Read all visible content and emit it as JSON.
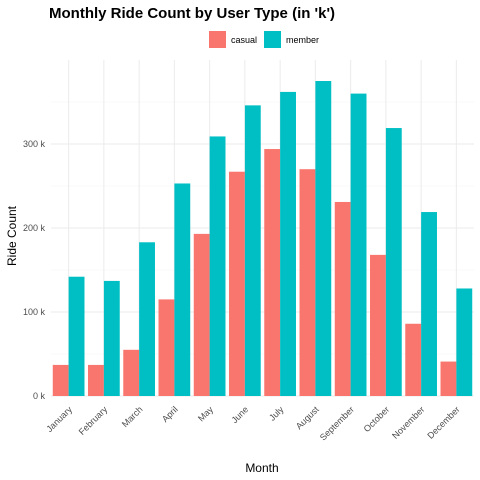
{
  "chart_data": {
    "type": "bar",
    "title": "Monthly Ride Count by User Type (in 'k')",
    "xlabel": "Month",
    "ylabel": "Ride Count",
    "categories": [
      "January",
      "February",
      "March",
      "April",
      "May",
      "June",
      "July",
      "August",
      "September",
      "October",
      "November",
      "December"
    ],
    "series": [
      {
        "name": "casual",
        "color": "#F8766D",
        "values": [
          37,
          37,
          55,
          115,
          193,
          267,
          294,
          270,
          231,
          168,
          86,
          41
        ]
      },
      {
        "name": "member",
        "color": "#00BFC4",
        "values": [
          142,
          137,
          183,
          253,
          309,
          346,
          362,
          375,
          360,
          319,
          219,
          128
        ]
      }
    ],
    "ylim": [
      0,
      400
    ],
    "yticks": [
      0,
      100,
      200,
      300
    ],
    "ytick_labels": [
      "0 k",
      "100 k",
      "200 k",
      "300 k"
    ],
    "grid": true,
    "legend_position": "top"
  }
}
